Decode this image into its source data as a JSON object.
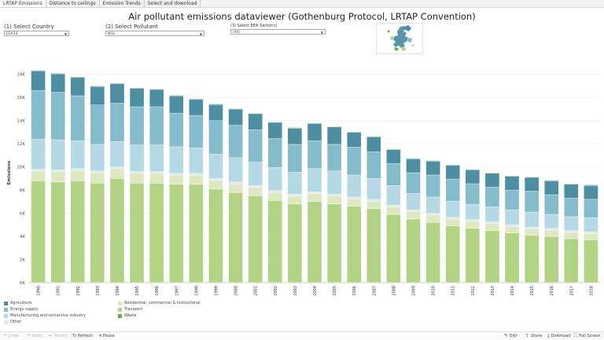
{
  "tabs": [
    "LRTAP Emissions",
    "Distance to ceilings",
    "Emission Trends",
    "Select and download"
  ],
  "title": "Air pollutant emissions dataviewer (Gothenburg Protocol, LRTAP Convention)",
  "filters": {
    "country_label": "(1) Select Country",
    "country_value": "EEA33",
    "pollutant_label": "(2) Select Pollutant",
    "pollutant_value": "NOx",
    "sector_label": "(3) Select EEA Sector(s)",
    "sector_value": "(All)"
  },
  "colors": {
    "Agriculture": "#4e8ea2",
    "Energy supply": "#85bccc",
    "Manufacturing and extractive industry": "#b5d9e4",
    "Other": "#dbe8ec",
    "Residential, commercial & institutional": "#dde8c0",
    "Transport": "#b3d384",
    "Waste": "#6aa84f"
  },
  "legend": [
    "Agriculture",
    "Energy supply",
    "Manufacturing and extractive industry",
    "Other",
    "Residential, commercial & institutional",
    "Transport",
    "Waste"
  ],
  "toolbar": {
    "undo": "Undo",
    "redo": "Redo",
    "revert": "Revert",
    "refresh": "Refresh",
    "pause": "Pause",
    "edit": "Edit",
    "share": "Share",
    "download": "Download",
    "fullscreen": "Full Screen"
  },
  "chart_data": {
    "type": "bar",
    "stacked": true,
    "ylabel": "Emissions",
    "ylim": [
      0,
      19000
    ],
    "yticks": [
      0,
      2000,
      4000,
      6000,
      8000,
      10000,
      12000,
      14000,
      16000,
      18000
    ],
    "ytick_labels": [
      "0K",
      "2K",
      "4K",
      "6K",
      "8K",
      "10K",
      "12K",
      "14K",
      "16K",
      "18K"
    ],
    "grid": true,
    "legend_position": "bottom-left",
    "categories": [
      "1990",
      "1991",
      "1992",
      "1993",
      "1994",
      "1995",
      "1996",
      "1997",
      "1998",
      "1999",
      "2000",
      "2001",
      "2002",
      "2003",
      "2004",
      "2005",
      "2006",
      "2007",
      "2008",
      "2009",
      "2010",
      "2011",
      "2012",
      "2013",
      "2014",
      "2015",
      "2016",
      "2017",
      "2018"
    ],
    "series": [
      {
        "name": "Transport",
        "values": [
          8800,
          8700,
          8800,
          8600,
          9000,
          8600,
          8600,
          8500,
          8500,
          8100,
          7800,
          7500,
          7100,
          6800,
          7000,
          6800,
          6600,
          6400,
          5900,
          5500,
          5200,
          4900,
          4700,
          4500,
          4300,
          4100,
          4000,
          3800,
          3700
        ]
      },
      {
        "name": "Residential, commercial & institutional",
        "values": [
          850,
          900,
          900,
          900,
          850,
          850,
          850,
          800,
          800,
          750,
          750,
          750,
          700,
          700,
          700,
          700,
          650,
          650,
          650,
          650,
          650,
          600,
          600,
          600,
          550,
          550,
          550,
          550,
          550
        ]
      },
      {
        "name": "Other",
        "values": [
          150,
          150,
          150,
          150,
          150,
          150,
          150,
          150,
          150,
          150,
          150,
          150,
          150,
          150,
          150,
          150,
          150,
          150,
          150,
          150,
          150,
          150,
          150,
          150,
          150,
          150,
          150,
          150,
          150
        ]
      },
      {
        "name": "Manufacturing and extractive industry",
        "values": [
          2600,
          2600,
          2400,
          2300,
          2200,
          2300,
          2300,
          2300,
          2200,
          2100,
          2100,
          2000,
          2000,
          1900,
          2000,
          2000,
          1900,
          1800,
          1700,
          1400,
          1400,
          1400,
          1300,
          1300,
          1300,
          1300,
          1200,
          1200,
          1200
        ]
      },
      {
        "name": "Energy supply",
        "values": [
          4200,
          4100,
          3900,
          3400,
          3300,
          3300,
          3300,
          2900,
          2800,
          2900,
          2800,
          2800,
          2500,
          2400,
          2400,
          2300,
          2400,
          2300,
          1900,
          1800,
          1900,
          1900,
          1800,
          1700,
          1700,
          1800,
          1700,
          1600,
          1600
        ]
      },
      {
        "name": "Agriculture",
        "values": [
          1700,
          1600,
          1600,
          1600,
          1700,
          1600,
          1500,
          1500,
          1400,
          1400,
          1400,
          1400,
          1400,
          1400,
          1500,
          1500,
          1300,
          1300,
          1200,
          1200,
          1200,
          1200,
          1200,
          1200,
          1200,
          1200,
          1200,
          1200,
          1200
        ]
      },
      {
        "name": "Waste",
        "values": [
          50,
          50,
          50,
          50,
          50,
          50,
          50,
          50,
          50,
          50,
          50,
          50,
          50,
          50,
          50,
          50,
          50,
          50,
          50,
          50,
          50,
          50,
          50,
          50,
          50,
          50,
          50,
          50,
          50
        ]
      }
    ]
  }
}
